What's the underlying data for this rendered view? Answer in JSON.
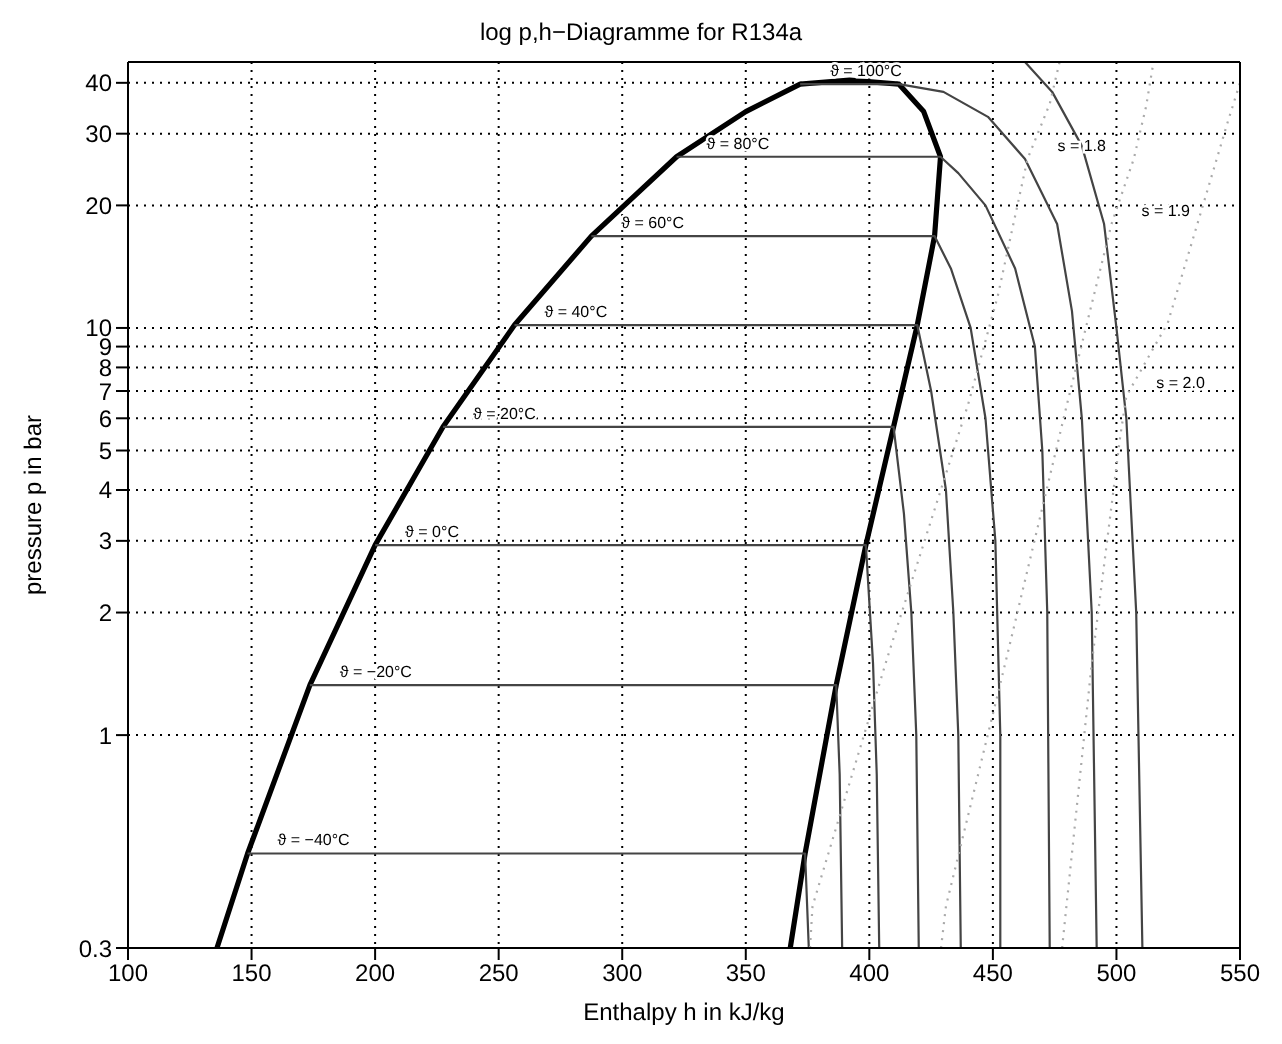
{
  "chart_data": {
    "type": "line",
    "title": "log p,h−Diagramme for R134a",
    "xlabel": "Enthalpy h in kJ/kg",
    "ylabel": "pressure p in bar",
    "xlim": [
      100,
      550
    ],
    "xticks": [
      100,
      150,
      200,
      250,
      300,
      350,
      400,
      450,
      500,
      550
    ],
    "ylim": [
      0.3,
      45
    ],
    "yticks": [
      0.3,
      1,
      2,
      3,
      4,
      5,
      6,
      7,
      8,
      9,
      10,
      20,
      30,
      40
    ],
    "log": "y",
    "grid": true,
    "marker": "none",
    "series": [
      {
        "type": "line",
        "color": "#000000",
        "line_style": "solid",
        "x": [
          136,
          148.4,
          173.6,
          200,
          227.5,
          256.4,
          287.5,
          322,
          350,
          372,
          392,
          412,
          422,
          428.8,
          426.4,
          419.4,
          409.8,
          398.6,
          386.6,
          374,
          368
        ],
        "values": [
          0.3,
          0.512,
          1.327,
          2.928,
          5.717,
          10.165,
          16.81,
          26.33,
          34,
          39.7,
          40.6,
          39.7,
          34,
          26.33,
          16.81,
          10.165,
          5.717,
          2.928,
          1.327,
          0.512,
          0.3
        ]
      },
      {
        "type": "line",
        "color": "#444444",
        "line_style": "solid",
        "x": [
          148.4,
          374,
          375.5
        ],
        "values": [
          0.512,
          0.512,
          0.3
        ]
      },
      {
        "type": "line",
        "color": "#444444",
        "line_style": "solid",
        "x": [
          173.6,
          386.6,
          388,
          389
        ],
        "values": [
          1.327,
          1.327,
          0.8,
          0.3
        ]
      },
      {
        "type": "line",
        "color": "#444444",
        "line_style": "solid",
        "x": [
          200,
          398.6,
          401.5,
          403,
          404
        ],
        "values": [
          2.928,
          2.928,
          1.5,
          0.8,
          0.3
        ]
      },
      {
        "type": "line",
        "color": "#444444",
        "line_style": "solid",
        "x": [
          227.5,
          409.8,
          414,
          417,
          419,
          420
        ],
        "values": [
          5.717,
          5.717,
          3.5,
          2,
          1,
          0.3
        ]
      },
      {
        "type": "line",
        "color": "#444444",
        "line_style": "solid",
        "x": [
          256.4,
          419.4,
          425,
          431,
          434,
          436,
          437
        ],
        "values": [
          10.165,
          10.165,
          7,
          4,
          2,
          1,
          0.3
        ]
      },
      {
        "type": "line",
        "color": "#444444",
        "line_style": "solid",
        "x": [
          287.5,
          426.4,
          433,
          441,
          447,
          451,
          453,
          453
        ],
        "values": [
          16.81,
          16.81,
          14,
          10,
          6,
          3,
          1,
          0.3
        ]
      },
      {
        "type": "line",
        "color": "#444444",
        "line_style": "solid",
        "x": [
          322,
          428.8,
          436,
          447,
          459,
          467,
          470,
          472,
          473
        ],
        "values": [
          26.33,
          26.33,
          24,
          20,
          14,
          9,
          5,
          2,
          0.3
        ]
      },
      {
        "type": "line",
        "color": "#444444",
        "line_style": "solid",
        "x": [
          372,
          412,
          430,
          448,
          463,
          476,
          482,
          486,
          490,
          492
        ],
        "values": [
          39.7,
          39.7,
          38,
          33,
          26,
          18,
          11,
          6,
          2,
          0.3
        ]
      },
      {
        "type": "line",
        "color": "#444444",
        "line_style": "solid",
        "x": [
          463,
          474,
          486,
          495,
          500,
          504,
          508,
          510.5
        ],
        "values": [
          45,
          38,
          28,
          18,
          10,
          6,
          2,
          0.3
        ]
      },
      {
        "type": "line",
        "color": "#aaaaaa",
        "line_style": "dotted",
        "x": [
          376,
          377,
          407,
          440,
          452,
          464,
          473,
          477
        ],
        "values": [
          0.3,
          0.38,
          1.53,
          6.5,
          12,
          26,
          35.5,
          45
        ]
      },
      {
        "type": "line",
        "color": "#aaaaaa",
        "line_style": "dotted",
        "x": [
          429,
          431,
          455,
          480,
          498,
          507,
          512,
          515
        ],
        "values": [
          0.3,
          0.38,
          1.5,
          6.5,
          18,
          26,
          35,
          45
        ]
      },
      {
        "type": "line",
        "color": "#aaaaaa",
        "line_style": "dotted",
        "x": [
          478,
          490,
          501.5,
          504,
          520.8,
          535,
          545,
          550
        ],
        "values": [
          0.3,
          1.5,
          5.4,
          6.8,
          10.3,
          20,
          32,
          40
        ]
      }
    ],
    "annotations": [
      {
        "text": "ϑ = −40°C",
        "x": 148.4,
        "y": 0.512
      },
      {
        "text": "ϑ = −20°C",
        "x": 173.6,
        "y": 1.327
      },
      {
        "text": "ϑ = 0°C",
        "x": 200,
        "y": 2.928
      },
      {
        "text": "ϑ = 20°C",
        "x": 227.5,
        "y": 5.717
      },
      {
        "text": "ϑ = 40°C",
        "x": 256.4,
        "y": 10.165
      },
      {
        "text": "ϑ = 60°C",
        "x": 287.5,
        "y": 16.81
      },
      {
        "text": "ϑ = 80°C",
        "x": 322,
        "y": 26.33
      },
      {
        "text": "ϑ = 100°C",
        "x": 372,
        "y": 39.7
      },
      {
        "text": "s = 1.8",
        "x": 464,
        "y": 26
      },
      {
        "text": "s = 1.9",
        "x": 498,
        "y": 18
      },
      {
        "text": "s = 2.0",
        "x": 504,
        "y": 6.8
      }
    ]
  }
}
